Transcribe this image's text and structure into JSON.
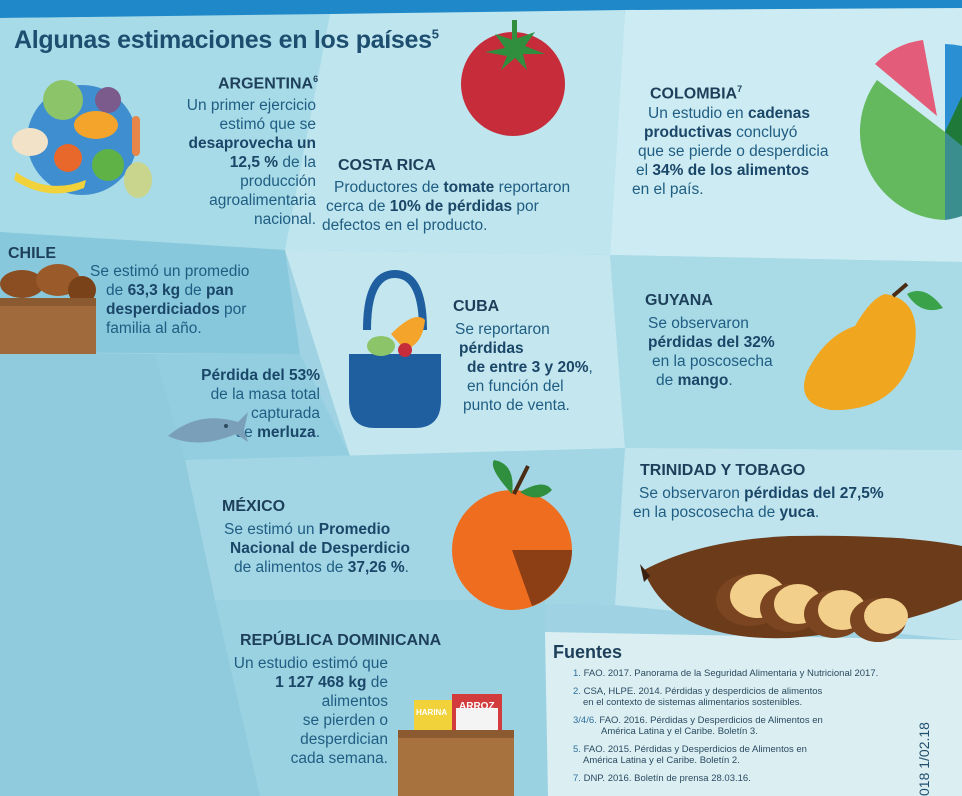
{
  "title": "Algunas estimaciones en los países",
  "title_sup": "5",
  "argentina": {
    "name": "ARGENTINA",
    "sup": "6",
    "t1": "Un primer ejercicio",
    "t2": "estimó que se",
    "b1": "desaprovecha un",
    "b2": "12,5 %",
    "t3": "de la",
    "t4": "producción",
    "t5": "agroalimentaria",
    "t6": "nacional."
  },
  "costa_rica": {
    "name": "COSTA RICA",
    "t1": "Productores de",
    "b1": "tomate",
    "t2": "reportaron",
    "t3": "cerca de",
    "b2": "10% de pérdidas",
    "t4": "por",
    "t5": "defectos en el producto."
  },
  "colombia": {
    "name": "COLOMBIA",
    "sup": "7",
    "t1": "Un estudio en",
    "b1": "cadenas",
    "b2": "productivas",
    "t2": "concluyó",
    "t3": "que se pierde o desperdicia",
    "t4": "el",
    "b3": "34% de los alimentos",
    "t5": "en el país."
  },
  "chile": {
    "name": "CHILE",
    "t1": "Se estimó un promedio",
    "t2": "de",
    "b1": "63,3 kg",
    "t3": "de",
    "b2": "pan",
    "b3": "desperdiciados",
    "t4": "por",
    "t5": "familia al año.",
    "b4": "Pérdida del 53%",
    "t6": "de la masa total",
    "t7": "capturada",
    "t8": "de",
    "b5": "merluza",
    "t9": "."
  },
  "cuba": {
    "name": "CUBA",
    "t1": "Se reportaron",
    "b1": "pérdidas",
    "b2": "de entre 3 y 20%",
    "t2": ",",
    "t3": "en función del",
    "t4": "punto de venta."
  },
  "guyana": {
    "name": "GUYANA",
    "t1": "Se observaron",
    "b1": "pérdidas del 32%",
    "t2": "en la poscosecha",
    "t3": "de",
    "b2": "mango",
    "t4": "."
  },
  "mexico": {
    "name": "MÉXICO",
    "t1": "Se estimó un",
    "b1": "Promedio",
    "b2": "Nacional de Desperdicio",
    "t2": "de alimentos de",
    "b3": "37,26 %",
    "t3": "."
  },
  "trinidad": {
    "name": "TRINIDAD Y TOBAGO",
    "t1": "Se observaron",
    "b1": "pérdidas del 27,5%",
    "t2": "en la poscosecha de",
    "b2": "yuca",
    "t3": "."
  },
  "dominicana": {
    "name": "REPÚBLICA DOMINICANA",
    "t1": "Un estudio estimó que",
    "b1": "1 127 468 kg",
    "t2": "de alimentos",
    "t3": "se pierden o",
    "t4": "desperdician",
    "t5": "cada semana."
  },
  "boxes": {
    "harina": "HARINA",
    "arroz": "ARROZ"
  },
  "sources": {
    "title": "Fuentes",
    "items": [
      {
        "n": "1.",
        "l1": "FAO. 2017. Panorama de la Seguridad Alimentaria y Nutricional 2017.",
        "l2": ""
      },
      {
        "n": "2.",
        "l1": "CSA, HLPE. 2014. Pérdidas y desperdicios de alimentos",
        "l2": "en el contexto de sistemas alimentarios sostenibles."
      },
      {
        "n": "3/4/6.",
        "l1": "FAO. 2016. Pérdidas y Desperdicios de Alimentos en",
        "l2": "América Latina y el Caribe. Boletín 3."
      },
      {
        "n": "5.",
        "l1": "FAO. 2015. Pérdidas y Desperdicios de Alimentos en",
        "l2": "América Latina y el Caribe. Boletín 2."
      },
      {
        "n": "7.",
        "l1": "DNP. 2016. Boletín de prensa 28.03.16.",
        "l2": ""
      }
    ]
  },
  "side_text": "018  1/02.18",
  "colors": {
    "dark_blue": "#1d4e70",
    "light_blue": "#b8e2ec",
    "mid_blue": "#8ccbdd",
    "accent": "#1e88c8"
  }
}
